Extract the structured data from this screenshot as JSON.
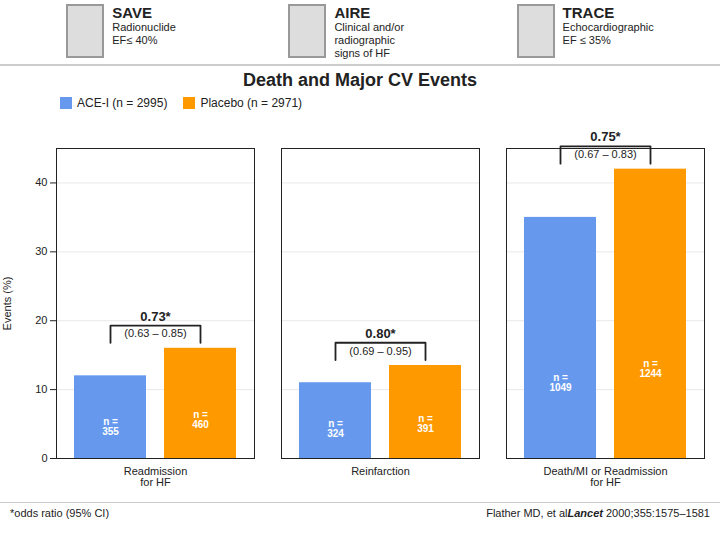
{
  "chart_data": {
    "type": "bar",
    "title": "Death and Major CV Events",
    "categories": [
      "Readmission\nfor HF",
      "Reinfarction",
      "Death/MI or Readmission\nfor HF"
    ],
    "series": [
      {
        "name": "ACE-I (n = 2995)",
        "color": "#6699EE",
        "values": [
          12,
          11,
          35
        ],
        "n_labels": [
          "n =\n355",
          "n =\n324",
          "n =\n1049"
        ]
      },
      {
        "name": "Placebo (n = 2971)",
        "color": "#FF9900",
        "values": [
          16,
          13.5,
          42
        ],
        "n_labels": [
          "n =\n460",
          "n =\n391",
          "n =\n1244"
        ]
      }
    ],
    "ylabel": "Events (%)",
    "ylim": [
      0,
      45
    ],
    "yticks": [
      0,
      10,
      20,
      30,
      40
    ],
    "grid": true,
    "legend": "upper left",
    "annotations": [
      {
        "category": "Readmission\nfor HF",
        "text": "0.73*",
        "ci": "(0.63 – 0.85)"
      },
      {
        "category": "Reinfarction",
        "text": "0.80*",
        "ci": "(0.69 – 0.95)"
      },
      {
        "category": "Death/MI or Readmission\nfor HF",
        "text": "0.75*",
        "ci": "(0.67 – 0.83)"
      }
    ],
    "panels": [
      {
        "title": "SAVE",
        "text": "Radionuclide\nEF≤ 40%"
      },
      {
        "title": "AIRE",
        "text": "Clinical and/or\nradiographic\nsigns of HF"
      },
      {
        "title": "TRACE",
        "text": "Echocardiographic\nEF ≤ 35%"
      }
    ],
    "caption": "*odds ratio (95% CI)",
    "source": [
      {
        "text": "Flather MD, et al",
        "emphasis": false
      },
      {
        "text": "Lancet",
        "emphasis": true
      },
      {
        "text": " 2000;355:1575–1581",
        "emphasis": false
      }
    ]
  }
}
